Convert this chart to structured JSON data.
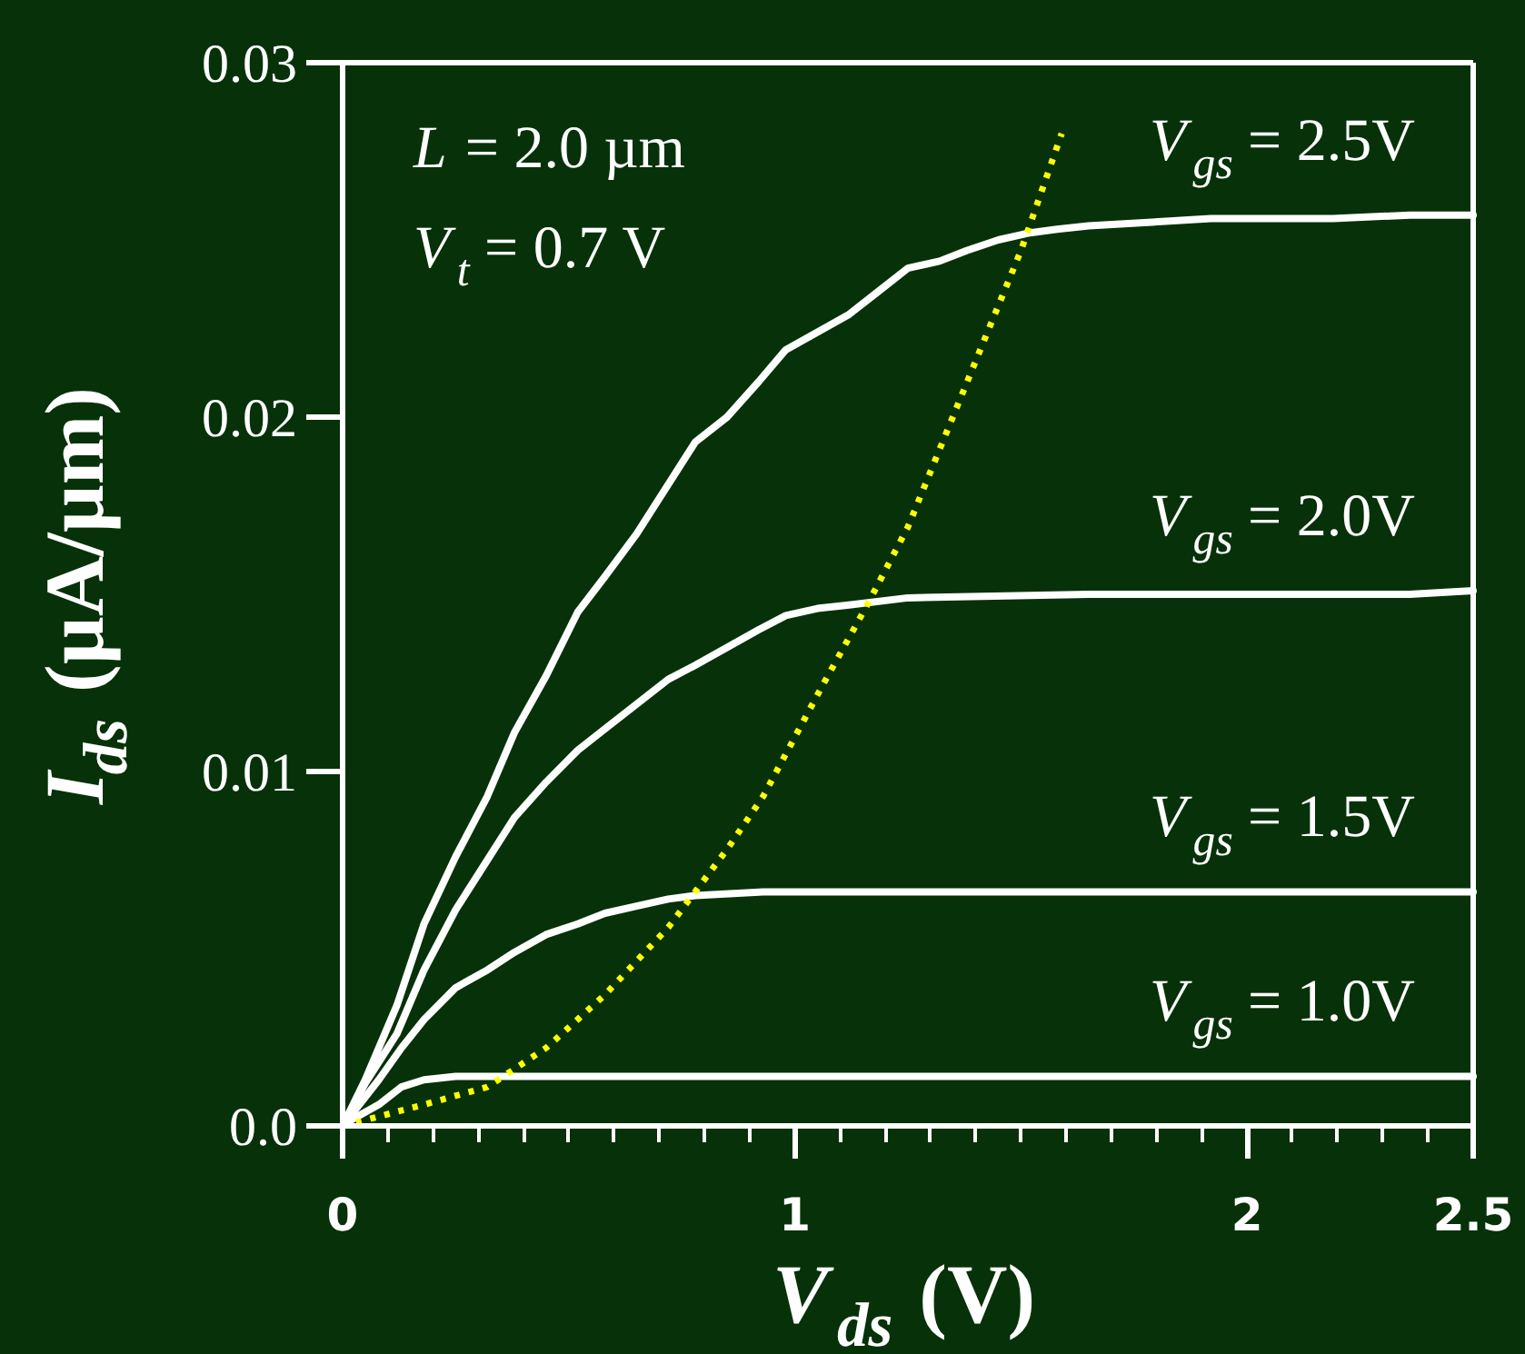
{
  "chart_data": {
    "type": "line",
    "xlabel": "V$_{ds}$ (V)",
    "ylabel": "I$_{ds}$ (µA/µm)",
    "xlim": [
      0,
      2.5
    ],
    "ylim": [
      0,
      0.03
    ],
    "xticks": [
      0,
      1,
      2,
      2.5
    ],
    "yticks": [
      {
        "value": 0,
        "label": "0.0"
      },
      0.01,
      0.02,
      0.03
    ],
    "legend": "right",
    "annotations": [
      "L = 2.0 µm",
      "V$_{t}$ = 0.7 V"
    ],
    "series": [
      {
        "name": "V$_{gs}$ = 2.5V",
        "color": "#ffffff",
        "x": [
          0,
          0.05,
          0.12,
          0.18,
          0.25,
          0.32,
          0.38,
          0.45,
          0.52,
          0.58,
          0.65,
          0.72,
          0.78,
          0.85,
          0.92,
          0.98,
          1.05,
          1.12,
          1.18,
          1.25,
          1.32,
          1.38,
          1.45,
          1.52,
          1.58,
          1.65,
          1.79,
          1.92,
          2.19,
          2.36,
          2.5
        ],
        "values": [
          0,
          0.0013,
          0.0034,
          0.0057,
          0.0076,
          0.0093,
          0.0111,
          0.0127,
          0.0145,
          0.0155,
          0.0167,
          0.0181,
          0.0193,
          0.02,
          0.021,
          0.0219,
          0.0224,
          0.0229,
          0.0235,
          0.0242,
          0.0244,
          0.0247,
          0.025,
          0.0252,
          0.0253,
          0.0254,
          0.0255,
          0.0256,
          0.0256,
          0.0257,
          0.0257
        ]
      },
      {
        "name": "V$_{gs}$ = 2.0V",
        "color": "#ffffff",
        "x": [
          0,
          0.05,
          0.12,
          0.18,
          0.25,
          0.32,
          0.38,
          0.45,
          0.52,
          0.58,
          0.65,
          0.72,
          0.78,
          0.85,
          0.92,
          0.98,
          1.05,
          1.12,
          1.25,
          1.65,
          2.36,
          2.5
        ],
        "values": [
          0,
          0.0012,
          0.0026,
          0.0044,
          0.0061,
          0.0075,
          0.0087,
          0.0097,
          0.0106,
          0.0112,
          0.0119,
          0.0126,
          0.013,
          0.0135,
          0.014,
          0.0144,
          0.0146,
          0.0147,
          0.0149,
          0.015,
          0.015,
          0.0151
        ]
      },
      {
        "name": "V$_{gs}$ = 1.5V",
        "color": "#ffffff",
        "x": [
          0,
          0.08,
          0.13,
          0.18,
          0.25,
          0.32,
          0.38,
          0.45,
          0.52,
          0.58,
          0.65,
          0.72,
          0.78,
          0.93,
          2.5
        ],
        "values": [
          0,
          0.0013,
          0.0022,
          0.003,
          0.0039,
          0.0044,
          0.0049,
          0.0054,
          0.0057,
          0.006,
          0.0062,
          0.0064,
          0.0065,
          0.0066,
          0.0066
        ]
      },
      {
        "name": "V$_{gs}$ = 1.0V",
        "color": "#ffffff",
        "x": [
          0,
          0.01,
          0.08,
          0.13,
          0.18,
          0.25,
          2.5
        ],
        "values": [
          0,
          0.0001,
          0.0006,
          0.0011,
          0.0013,
          0.0014,
          0.0014
        ]
      },
      {
        "color": "#ffff00",
        "line_style": "dotted",
        "x": [
          0.03,
          0.18,
          0.32,
          0.45,
          0.58,
          0.72,
          0.85,
          0.93,
          1.06,
          1.16,
          1.25,
          1.33,
          1.41,
          1.5,
          1.59
        ],
        "values": [
          0.0001,
          0.0006,
          0.0011,
          0.0022,
          0.0037,
          0.0056,
          0.0078,
          0.0093,
          0.0124,
          0.0147,
          0.0169,
          0.0194,
          0.0219,
          0.0247,
          0.028
        ]
      }
    ]
  }
}
